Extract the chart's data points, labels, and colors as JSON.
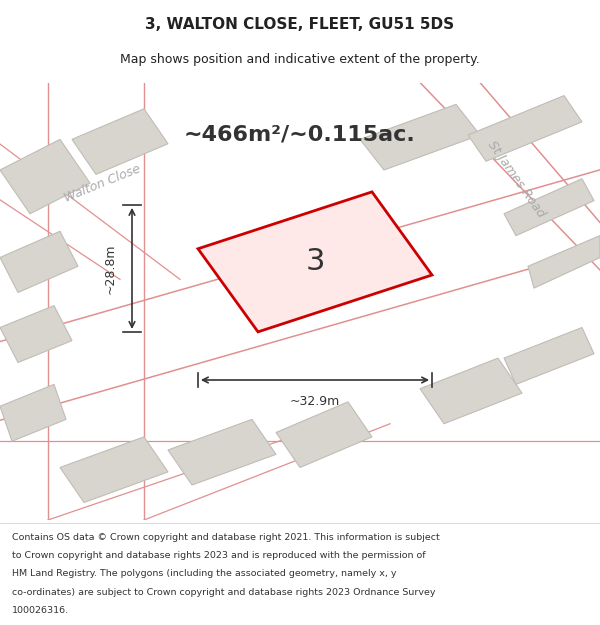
{
  "title_line1": "3, WALTON CLOSE, FLEET, GU51 5DS",
  "title_line2": "Map shows position and indicative extent of the property.",
  "area_text": "~466m²/~0.115ac.",
  "property_number": "3",
  "dim_width": "~32.9m",
  "dim_height": "~28.8m",
  "road_label_walton_close_top": "Walton Close",
  "road_label_walton_close_diag": "Walton Close",
  "road_label_st_james": "St James Road",
  "footer_lines": [
    "Contains OS data © Crown copyright and database right 2021. This information is subject",
    "to Crown copyright and database rights 2023 and is reproduced with the permission of",
    "HM Land Registry. The polygons (including the associated geometry, namely x, y",
    "co-ordinates) are subject to Crown copyright and database rights 2023 Ordnance Survey",
    "100026316."
  ],
  "map_bg": "#f0ede8",
  "building_color": "#d8d4ce",
  "building_edge": "#c0bcb6",
  "property_fill": "#ffe8e8",
  "property_edge": "#cc0000",
  "road_line_color": "#e09090",
  "street_label_color": "#aaaaaa",
  "dim_color": "#333333",
  "area_text_color": "#333333",
  "title_color": "#222222",
  "footer_color": "#333333"
}
